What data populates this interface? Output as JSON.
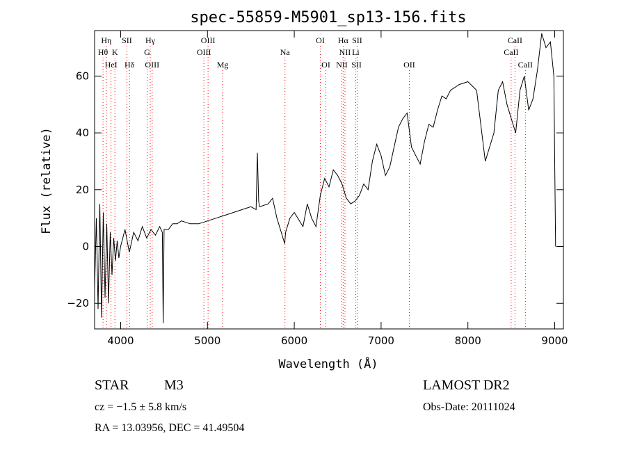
{
  "chart_data": {
    "type": "line",
    "title": "spec-55859-M5901_sp13-156.fits",
    "xlabel": "Wavelength (Å)",
    "ylabel": "Flux (relative)",
    "xlim": [
      3700,
      9100
    ],
    "ylim": [
      -29,
      76
    ],
    "xticks": [
      4000,
      5000,
      6000,
      7000,
      8000,
      9000
    ],
    "yticks": [
      -20,
      0,
      20,
      40,
      60
    ],
    "grid": false,
    "series": [
      {
        "x": [
          3700,
          3720,
          3740,
          3760,
          3780,
          3800,
          3820,
          3840,
          3860,
          3880,
          3900,
          3920,
          3940,
          3960,
          3980,
          4000,
          4050,
          4100,
          4150,
          4200,
          4250,
          4300,
          4350,
          4400,
          4450,
          4480,
          4490,
          4500,
          4550,
          4600,
          4650,
          4700,
          4800,
          4900,
          5000,
          5100,
          5200,
          5300,
          5400,
          5500,
          5560,
          5575,
          5590,
          5600,
          5700,
          5750,
          5800,
          5850,
          5890,
          5900,
          5950,
          6000,
          6100,
          6150,
          6200,
          6250,
          6300,
          6350,
          6400,
          6450,
          6500,
          6550,
          6600,
          6650,
          6700,
          6750,
          6800,
          6850,
          6900,
          6950,
          7000,
          7050,
          7100,
          7150,
          7200,
          7250,
          7300,
          7350,
          7400,
          7450,
          7500,
          7550,
          7600,
          7650,
          7700,
          7750,
          7800,
          7900,
          8000,
          8100,
          8200,
          8300,
          8350,
          8400,
          8450,
          8500,
          8550,
          8600,
          8650,
          8700,
          8750,
          8800,
          8850,
          8900,
          8950,
          8990,
          9000,
          9010
        ],
        "values": [
          -15,
          10,
          -22,
          15,
          -25,
          12,
          -18,
          8,
          -20,
          5,
          -10,
          3,
          -5,
          2,
          -4,
          0,
          6,
          -2,
          5,
          2,
          7,
          3,
          6,
          4,
          7,
          5,
          -27,
          6,
          6,
          8,
          8,
          9,
          8,
          8,
          9,
          10,
          11,
          12,
          13,
          14,
          13,
          33,
          16,
          14,
          15,
          17,
          10,
          5,
          1,
          5,
          10,
          12,
          7,
          15,
          10,
          7,
          18,
          24,
          21,
          27,
          25,
          22,
          17,
          15,
          16,
          18,
          22,
          20,
          30,
          36,
          32,
          25,
          28,
          35,
          42,
          45,
          47,
          35,
          32,
          29,
          37,
          43,
          42,
          48,
          53,
          52,
          55,
          57,
          58,
          55,
          30,
          40,
          55,
          58,
          50,
          45,
          40,
          55,
          60,
          48,
          52,
          62,
          75,
          70,
          72,
          60,
          30,
          0
        ]
      }
    ],
    "annotations": [
      {
        "label": "Hη",
        "x": 3835,
        "row": 1
      },
      {
        "label": "Hθ",
        "x": 3797,
        "row": 2
      },
      {
        "label": "K",
        "x": 3934,
        "row": 2
      },
      {
        "label": "HeI",
        "x": 3889,
        "row": 3
      },
      {
        "label": "SII",
        "x": 4072,
        "row": 1
      },
      {
        "label": "Hδ",
        "x": 4102,
        "row": 3
      },
      {
        "label": "Hγ",
        "x": 4341,
        "row": 1
      },
      {
        "label": "G",
        "x": 4305,
        "row": 2
      },
      {
        "label": "OIII",
        "x": 4363,
        "row": 3
      },
      {
        "label": "OIII",
        "x": 5007,
        "row": 1
      },
      {
        "label": "OIII",
        "x": 4959,
        "row": 2
      },
      {
        "label": "Mg",
        "x": 5175,
        "row": 3
      },
      {
        "label": "Na",
        "x": 5893,
        "row": 2
      },
      {
        "label": "OI",
        "x": 6300,
        "row": 1
      },
      {
        "label": "OI",
        "x": 6364,
        "row": 3
      },
      {
        "label": "Hα",
        "x": 6563,
        "row": 1
      },
      {
        "label": "SII",
        "x": 6724,
        "row": 1
      },
      {
        "label": "NII",
        "x": 6584,
        "row": 2
      },
      {
        "label": "Li",
        "x": 6708,
        "row": 2
      },
      {
        "label": "NII",
        "x": 6548,
        "row": 3
      },
      {
        "label": "SII",
        "x": 6717,
        "row": 3
      },
      {
        "label": "OII",
        "x": 7325,
        "row": 3
      },
      {
        "label": "CaII",
        "x": 8542,
        "row": 1
      },
      {
        "label": "CaII",
        "x": 8498,
        "row": 2
      },
      {
        "label": "CaII",
        "x": 8662,
        "row": 3
      }
    ],
    "line_marker_color": "#ff0000",
    "line_color": "#000000"
  },
  "footer": {
    "class_label": "STAR",
    "subclass": "M3",
    "survey": "LAMOST DR2",
    "cz": "cz = −1.5 ± 5.8 km/s",
    "obs_date": "Obs-Date: 20111024",
    "coords": "RA =  13.03956, DEC =  41.49504"
  }
}
